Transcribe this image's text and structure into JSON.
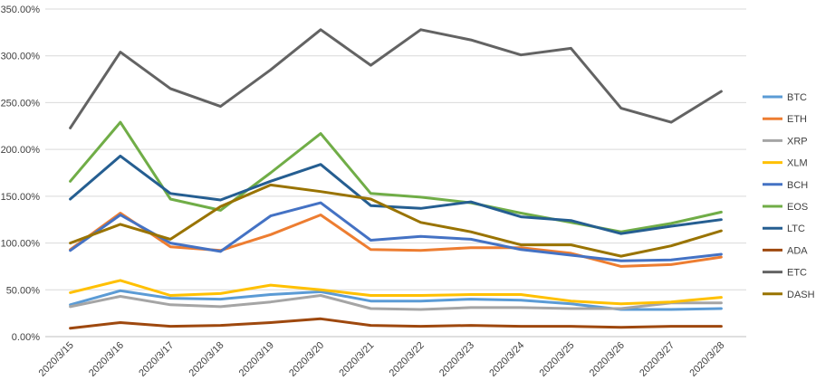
{
  "chart_data": {
    "type": "line",
    "title": "",
    "xlabel": "",
    "ylabel": "",
    "ylim": [
      0,
      350
    ],
    "y_tick_step": 50,
    "y_tick_labels": [
      "0.00%",
      "50.00%",
      "100.00%",
      "150.00%",
      "200.00%",
      "250.00%",
      "300.00%",
      "350.00%"
    ],
    "grid": true,
    "legend_position": "right",
    "categories": [
      "2020/3/15",
      "2020/3/16",
      "2020/3/17",
      "2020/3/18",
      "2020/3/19",
      "2020/3/20",
      "2020/3/21",
      "2020/3/22",
      "2020/3/23",
      "2020/3/24",
      "2020/3/25",
      "2020/3/26",
      "2020/3/27",
      "2020/3/28"
    ],
    "series": [
      {
        "name": "BTC",
        "color": "#5b9bd5",
        "values": [
          34,
          49,
          41,
          40,
          45,
          48,
          38,
          38,
          40,
          39,
          35,
          29,
          29,
          30
        ]
      },
      {
        "name": "ETH",
        "color": "#ed7d31",
        "values": [
          93,
          132,
          96,
          92,
          109,
          130,
          93,
          92,
          95,
          95,
          89,
          75,
          77,
          85
        ]
      },
      {
        "name": "XRP",
        "color": "#a5a5a5",
        "values": [
          32,
          43,
          34,
          32,
          37,
          44,
          30,
          29,
          31,
          31,
          30,
          30,
          36,
          36
        ]
      },
      {
        "name": "XLM",
        "color": "#ffc000",
        "values": [
          47,
          60,
          44,
          46,
          55,
          50,
          44,
          44,
          45,
          45,
          38,
          35,
          37,
          42
        ]
      },
      {
        "name": "BCH",
        "color": "#4472c4",
        "values": [
          92,
          130,
          100,
          91,
          129,
          143,
          103,
          107,
          104,
          93,
          87,
          81,
          82,
          88
        ]
      },
      {
        "name": "EOS",
        "color": "#70ad47",
        "values": [
          166,
          229,
          147,
          135,
          175,
          217,
          153,
          149,
          143,
          132,
          122,
          112,
          121,
          133
        ]
      },
      {
        "name": "LTC",
        "color": "#255e91",
        "values": [
          147,
          193,
          153,
          146,
          166,
          184,
          140,
          137,
          144,
          128,
          124,
          110,
          118,
          125
        ]
      },
      {
        "name": "ADA",
        "color": "#9e480e",
        "values": [
          9,
          15,
          11,
          12,
          15,
          19,
          12,
          11,
          12,
          11,
          11,
          10,
          11,
          11
        ]
      },
      {
        "name": "ETC",
        "color": "#636363",
        "values": [
          223,
          304,
          265,
          246,
          285,
          328,
          290,
          328,
          317,
          301,
          308,
          244,
          229,
          262
        ]
      },
      {
        "name": "DASH",
        "color": "#997300",
        "values": [
          100,
          120,
          104,
          139,
          162,
          155,
          147,
          122,
          112,
          98,
          98,
          86,
          97,
          113
        ]
      }
    ]
  }
}
